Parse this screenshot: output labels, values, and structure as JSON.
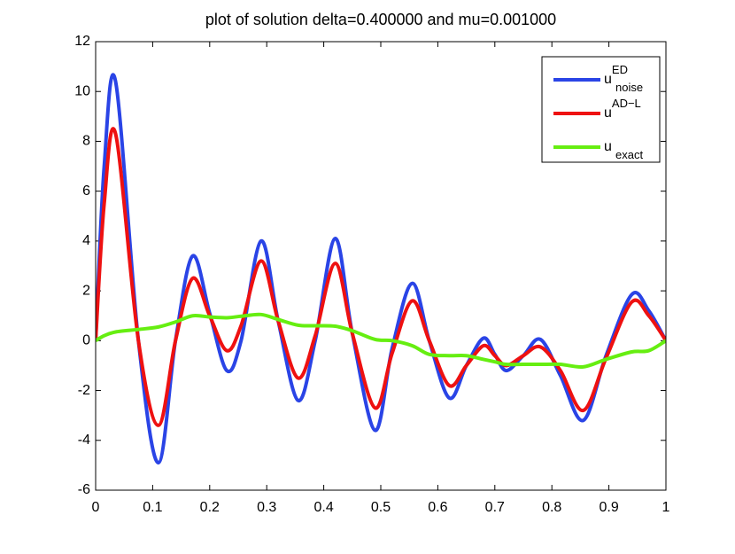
{
  "chart_data": {
    "type": "line",
    "title": "plot of solution delta=0.400000 and mu=0.001000",
    "x": [
      0,
      0.015,
      0.035,
      0.075,
      0.11,
      0.14,
      0.17,
      0.2,
      0.23,
      0.255,
      0.29,
      0.32,
      0.355,
      0.385,
      0.42,
      0.45,
      0.49,
      0.52,
      0.555,
      0.585,
      0.62,
      0.65,
      0.68,
      0.7,
      0.72,
      0.75,
      0.78,
      0.815,
      0.855,
      0.895,
      0.94,
      0.97,
      1
    ],
    "series": [
      {
        "name": "u",
        "name_sup": "ED",
        "name_sub": "noise",
        "color": "#2a44e6",
        "values": [
          0,
          7,
          10.4,
          0,
          -4.9,
          0,
          3.4,
          1.1,
          -1.2,
          0,
          4.0,
          0.8,
          -2.4,
          0,
          4.1,
          0.3,
          -3.6,
          -0.3,
          2.3,
          0,
          -2.3,
          -1.0,
          0.1,
          -0.55,
          -1.2,
          -0.6,
          0.05,
          -1.4,
          -3.2,
          -0.6,
          1.85,
          1.2,
          0
        ]
      },
      {
        "name": "u",
        "name_sup": "AD−L",
        "color": "#ee1111",
        "values": [
          0,
          5.5,
          8.3,
          0,
          -3.4,
          0,
          2.5,
          1.0,
          -0.4,
          0.6,
          3.2,
          0.8,
          -1.5,
          0.2,
          3.1,
          0.3,
          -2.7,
          -0.5,
          1.6,
          0,
          -1.8,
          -1.0,
          -0.2,
          -0.6,
          -1.0,
          -0.6,
          -0.25,
          -1.2,
          -2.8,
          -0.7,
          1.55,
          1.0,
          0
        ]
      },
      {
        "name": "u",
        "name_sub": "exact",
        "color": "#66ee11",
        "values": [
          0,
          0.2,
          0.35,
          0.45,
          0.55,
          0.75,
          1.0,
          0.95,
          0.92,
          0.98,
          1.05,
          0.85,
          0.62,
          0.6,
          0.58,
          0.4,
          0.05,
          0.0,
          -0.2,
          -0.55,
          -0.6,
          -0.6,
          -0.75,
          -0.85,
          -0.95,
          -0.95,
          -0.95,
          -0.95,
          -1.05,
          -0.75,
          -0.45,
          -0.4,
          0
        ]
      }
    ],
    "xlim": [
      0,
      1
    ],
    "ylim": [
      -6,
      12
    ],
    "xticks": [
      0,
      0.1,
      0.2,
      0.3,
      0.4,
      0.5,
      0.6,
      0.7,
      0.8,
      0.9,
      1
    ],
    "yticks": [
      -6,
      -4,
      -2,
      0,
      2,
      4,
      6,
      8,
      10,
      12
    ],
    "grid": false,
    "legend": "upper right"
  }
}
